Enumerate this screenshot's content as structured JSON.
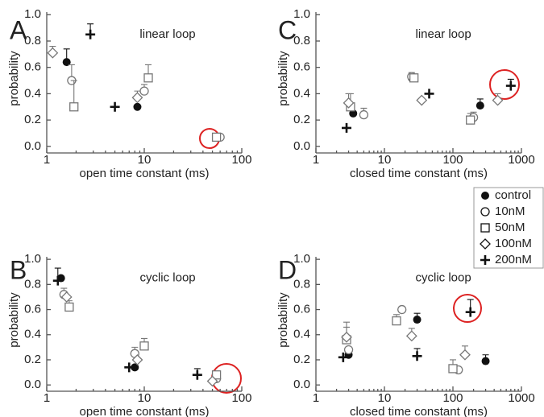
{
  "legend": [
    "control",
    "10nM",
    "50nM",
    "100nM",
    "200nM"
  ],
  "chart_data": [
    {
      "type": "scatter",
      "panel": "A",
      "annotation": "linear loop",
      "x_label": "open time constant (ms)",
      "y_label": "probability",
      "xscale": "log",
      "xlim": [
        1,
        100
      ],
      "xticks": [
        1,
        10,
        100
      ],
      "ylim": [
        -0.05,
        1.02
      ],
      "yticks": [
        {
          "value": 0,
          "label": "0.0"
        },
        0.2,
        0.4,
        0.6,
        0.8,
        {
          "value": 1,
          "label": "1.0"
        }
      ],
      "series": [
        {
          "marker": "filled-circle",
          "color": "#111",
          "x": [
            1.6,
            8.5
          ],
          "y": [
            0.64,
            0.3
          ],
          "yerr": [
            0.1,
            null
          ]
        },
        {
          "marker": "circle",
          "color": "#777",
          "x": [
            1.8,
            10,
            60
          ],
          "y": [
            0.5,
            0.42,
            0.07
          ],
          "yerr": [
            0.12,
            0.05,
            null
          ]
        },
        {
          "marker": "square",
          "color": "#777",
          "x": [
            1.9,
            11,
            55
          ],
          "y": [
            0.3,
            0.52,
            0.07
          ],
          "yerr": [
            0.2,
            0.1,
            null
          ]
        },
        {
          "marker": "diamond",
          "color": "#777",
          "x": [
            1.15,
            8.5
          ],
          "y": [
            0.71,
            0.37
          ],
          "yerr": [
            0.05,
            0.05
          ]
        },
        {
          "marker": "plus",
          "color": "#111",
          "x": [
            2.8,
            5
          ],
          "y": [
            0.85,
            0.3
          ],
          "yerr": [
            0.08,
            null
          ]
        }
      ]
    },
    {
      "type": "scatter",
      "panel": "C",
      "annotation": "linear loop",
      "x_label": "closed time constant (ms)",
      "y_label": "probability",
      "xscale": "log",
      "xlim": [
        1,
        1000
      ],
      "xticks": [
        1,
        10,
        100,
        1000
      ],
      "ylim": [
        -0.05,
        1.02
      ],
      "yticks": [
        {
          "value": 0,
          "label": "0.0"
        },
        0.2,
        0.4,
        0.6,
        0.8,
        {
          "value": 1,
          "label": "1.0"
        }
      ],
      "series": [
        {
          "marker": "filled-circle",
          "color": "#111",
          "x": [
            3.5,
            25,
            250
          ],
          "y": [
            0.25,
            0.52,
            0.31
          ],
          "yerr": [
            null,
            null,
            0.05
          ]
        },
        {
          "marker": "circle",
          "color": "#777",
          "x": [
            5,
            25,
            200
          ],
          "y": [
            0.24,
            0.53,
            0.22
          ],
          "yerr": [
            0.05,
            0.03,
            0.04
          ]
        },
        {
          "marker": "square",
          "color": "#777",
          "x": [
            3.2,
            27,
            180
          ],
          "y": [
            0.3,
            0.52,
            0.2
          ],
          "yerr": [
            0.1,
            0.03,
            0.05
          ]
        },
        {
          "marker": "diamond",
          "color": "#777",
          "x": [
            3,
            35,
            450
          ],
          "y": [
            0.33,
            0.35,
            0.35
          ],
          "yerr": [
            0.07,
            null,
            0.05
          ]
        },
        {
          "marker": "plus",
          "color": "#111",
          "x": [
            2.8,
            45,
            700
          ],
          "y": [
            0.14,
            0.4,
            0.46
          ],
          "yerr": [
            null,
            null,
            0.05
          ]
        }
      ]
    },
    {
      "type": "scatter",
      "panel": "B",
      "annotation": "cyclic loop",
      "x_label": "open time constant (ms)",
      "y_label": "probability",
      "xscale": "log",
      "xlim": [
        1,
        100
      ],
      "xticks": [
        1,
        10,
        100
      ],
      "ylim": [
        -0.05,
        1.02
      ],
      "yticks": [
        {
          "value": 0,
          "label": "0.0"
        },
        0.2,
        0.4,
        0.6,
        0.8,
        {
          "value": 1,
          "label": "1.0"
        }
      ],
      "series": [
        {
          "marker": "filled-circle",
          "color": "#111",
          "x": [
            1.4,
            8
          ],
          "y": [
            0.85,
            0.14
          ],
          "yerr": [
            null,
            null
          ]
        },
        {
          "marker": "circle",
          "color": "#777",
          "x": [
            1.5,
            8,
            55
          ],
          "y": [
            0.72,
            0.25,
            0.05
          ],
          "yerr": [
            0.05,
            0.05,
            null
          ]
        },
        {
          "marker": "square",
          "color": "#777",
          "x": [
            1.7,
            10,
            55
          ],
          "y": [
            0.62,
            0.31,
            0.08
          ],
          "yerr": [
            0.05,
            0.06,
            null
          ]
        },
        {
          "marker": "diamond",
          "color": "#777",
          "x": [
            1.6,
            8.5,
            50
          ],
          "y": [
            0.7,
            0.2,
            0.03
          ],
          "yerr": [
            null,
            null,
            null
          ]
        },
        {
          "marker": "plus",
          "color": "#111",
          "x": [
            1.3,
            7,
            35
          ],
          "y": [
            0.83,
            0.14,
            0.08
          ],
          "yerr": [
            0.1,
            null,
            0.05
          ]
        }
      ]
    },
    {
      "type": "scatter",
      "panel": "D",
      "annotation": "cyclic loop",
      "x_label": "closed time constant (ms)",
      "y_label": "probability",
      "xscale": "log",
      "xlim": [
        1,
        1000
      ],
      "xticks": [
        1,
        10,
        100,
        1000
      ],
      "ylim": [
        -0.05,
        1.02
      ],
      "yticks": [
        {
          "value": 0,
          "label": "0.0"
        },
        0.2,
        0.4,
        0.6,
        0.8,
        {
          "value": 1,
          "label": "1.0"
        }
      ],
      "series": [
        {
          "marker": "filled-circle",
          "color": "#111",
          "x": [
            3,
            30,
            300
          ],
          "y": [
            0.24,
            0.52,
            0.19
          ],
          "yerr": [
            null,
            0.05,
            0.05
          ]
        },
        {
          "marker": "circle",
          "color": "#777",
          "x": [
            3,
            18,
            120
          ],
          "y": [
            0.28,
            0.6,
            0.12
          ],
          "yerr": [
            null,
            null,
            null
          ]
        },
        {
          "marker": "square",
          "color": "#777",
          "x": [
            2.8,
            15,
            100
          ],
          "y": [
            0.36,
            0.51,
            0.13
          ],
          "yerr": [
            0.1,
            0.05,
            0.07
          ]
        },
        {
          "marker": "diamond",
          "color": "#777",
          "x": [
            2.8,
            25,
            150
          ],
          "y": [
            0.38,
            0.39,
            0.24
          ],
          "yerr": [
            0.12,
            0.06,
            0.07
          ]
        },
        {
          "marker": "plus",
          "color": "#111",
          "x": [
            2.5,
            30,
            180
          ],
          "y": [
            0.22,
            0.23,
            0.58
          ],
          "yerr": [
            null,
            0.06,
            0.1
          ]
        }
      ]
    }
  ]
}
